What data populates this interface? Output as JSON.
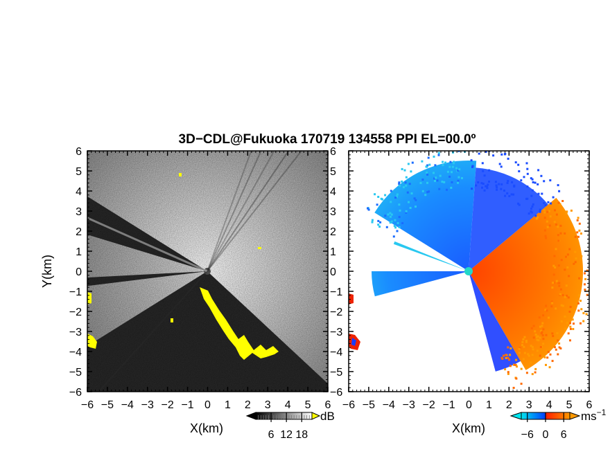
{
  "figure": {
    "title": "3D−CDL@Fukuoka 170719 134558 PPI EL=00.0º"
  },
  "chart_data": [
    {
      "type": "heatmap",
      "name": "snr-ppi",
      "xlabel": "X(km)",
      "ylabel": "Y(km)",
      "xlim": [
        -6,
        6
      ],
      "ylim": [
        -6,
        6
      ],
      "x_ticks": [
        "−6",
        "−5",
        "−4",
        "−3",
        "−2",
        "−1",
        "0",
        "1",
        "2",
        "3",
        "4",
        "5",
        "6"
      ],
      "y_ticks": [
        "−6",
        "−5",
        "−4",
        "−3",
        "−2",
        "−1",
        "0",
        "1",
        "2",
        "3",
        "4",
        "5",
        "6"
      ],
      "grid": false,
      "colorbar": {
        "unit": "dB",
        "ticks": [
          "6",
          "12",
          "18"
        ],
        "tick_values": [
          6,
          12,
          18
        ],
        "range": [
          0,
          22
        ],
        "colors": [
          "#000000",
          "#ffffff"
        ],
        "overflow_color": "#ffff00"
      }
    },
    {
      "type": "heatmap",
      "name": "doppler-velocity-ppi",
      "xlabel": "X(km)",
      "xlim": [
        -6,
        6
      ],
      "ylim": [
        -6,
        6
      ],
      "x_ticks": [
        "−6",
        "−5",
        "−4",
        "−3",
        "−2",
        "−1",
        "0",
        "1",
        "2",
        "3",
        "4",
        "5",
        "6"
      ],
      "grid": false,
      "colorbar": {
        "unit": "ms",
        "unit_exponent": "−1",
        "ticks": [
          "−6",
          "0",
          "6"
        ],
        "tick_values": [
          -6,
          0,
          6
        ],
        "range": [
          -8,
          8
        ],
        "colors": [
          "#00e5ee",
          "#0044ff",
          "#ff2200",
          "#ff9900"
        ]
      }
    }
  ]
}
